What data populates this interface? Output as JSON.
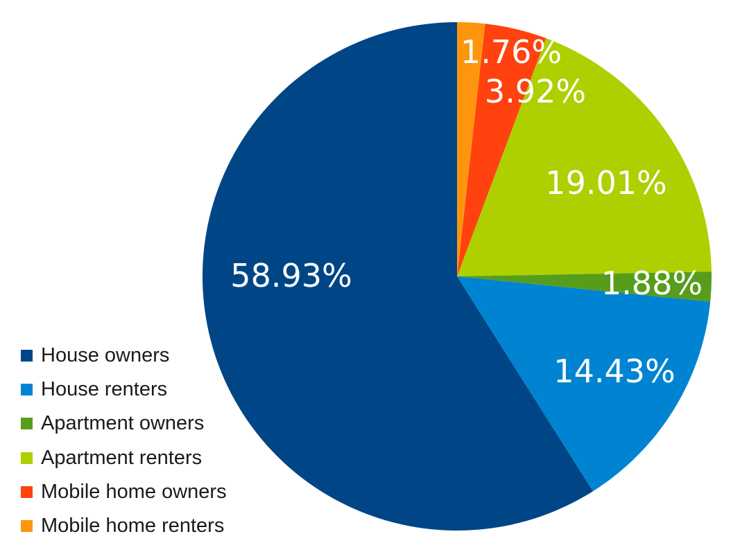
{
  "chart_data": {
    "type": "pie",
    "title": "",
    "categories": [
      "House owners",
      "House renters",
      "Apartment owners",
      "Apartment renters",
      "Mobile home owners",
      "Mobile home renters"
    ],
    "values": [
      58.93,
      14.43,
      1.88,
      19.01,
      3.92,
      1.76
    ],
    "value_labels": [
      "58.93%",
      "14.43%",
      "1.88%",
      "19.01%",
      "3.92%",
      "1.76%"
    ],
    "colors": [
      "#004586",
      "#0084d1",
      "#579d1c",
      "#aecf00",
      "#ff420e",
      "#ff950e"
    ],
    "start_angle": "top",
    "direction": "counter-clockwise",
    "legend_position": "bottom-left"
  }
}
